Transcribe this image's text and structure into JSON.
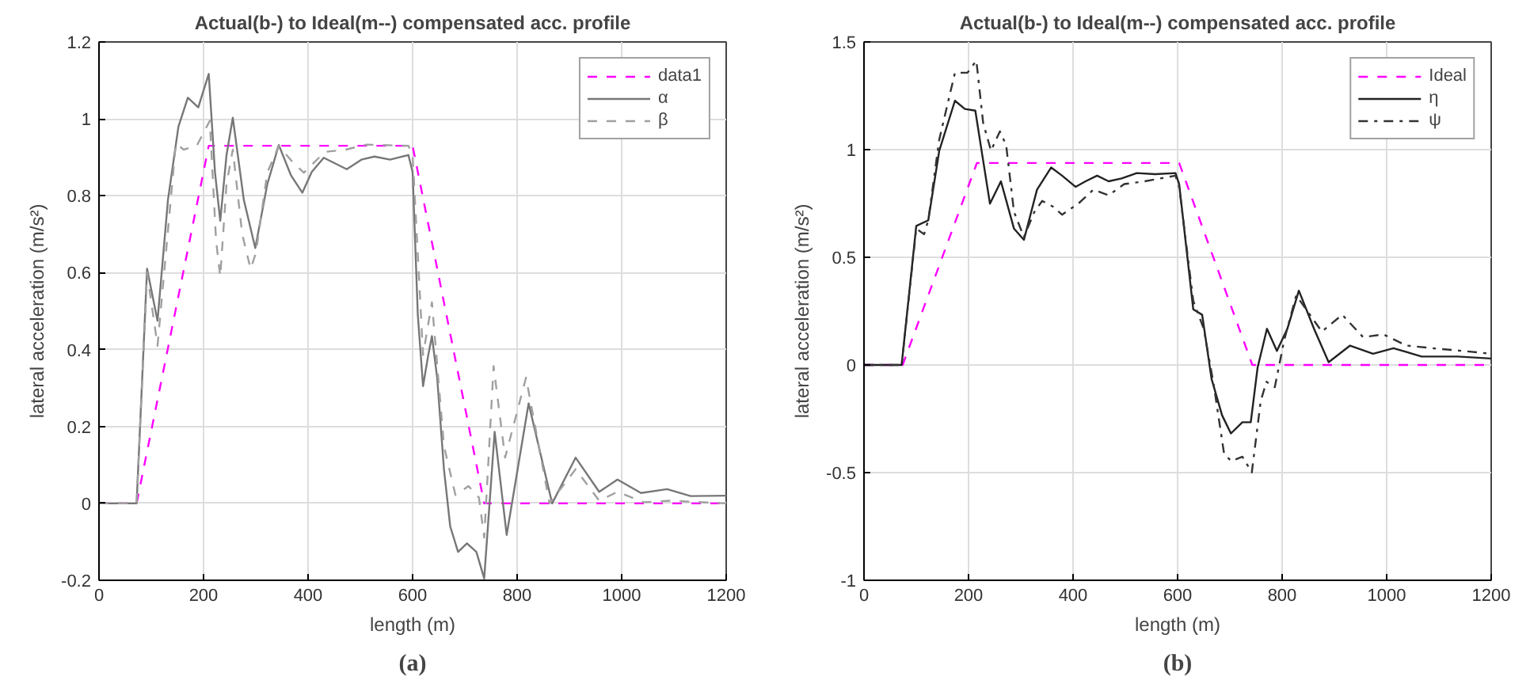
{
  "chart_data": [
    {
      "type": "line",
      "title": "Actual(b-) to Ideal(m--) compensated acc. profile",
      "xlabel": "length (m)",
      "ylabel": "lateral acceleration (m/s²)",
      "annotations": [
        "(a)"
      ],
      "xlim": [
        0,
        1200
      ],
      "xticks": [
        0,
        200,
        400,
        600,
        800,
        1000,
        1200
      ],
      "ylim": [
        -0.2,
        1.2
      ],
      "yticks": [
        -0.2,
        0,
        0.2,
        0.4,
        0.6,
        0.8,
        1,
        1.2
      ],
      "grid": true,
      "legend": "top right",
      "series": [
        {
          "name": "data1",
          "color": "#ff00ff",
          "line_style": "dashed",
          "x": [
            0,
            72,
            210,
            600,
            737,
            1200
          ],
          "values": [
            0,
            0,
            0.93,
            0.93,
            0,
            0
          ]
        },
        {
          "name": "α",
          "color": "#777777",
          "line_style": "solid",
          "x": [
            0,
            72,
            92,
            112,
            132,
            152,
            170,
            190,
            210,
            222,
            232,
            244,
            256,
            277,
            299,
            322,
            344,
            367,
            389,
            407,
            430,
            452,
            474,
            502,
            527,
            557,
            592,
            600,
            610,
            620,
            630,
            637,
            647,
            660,
            672,
            687,
            704,
            722,
            737,
            757,
            780,
            822,
            867,
            912,
            957,
            992,
            1037,
            1087,
            1132,
            1200
          ],
          "values": [
            0,
            0,
            0.61,
            0.475,
            0.79,
            0.98,
            1.055,
            1.03,
            1.117,
            0.86,
            0.735,
            0.906,
            1.003,
            0.79,
            0.664,
            0.83,
            0.932,
            0.854,
            0.808,
            0.862,
            0.899,
            0.884,
            0.869,
            0.894,
            0.902,
            0.894,
            0.906,
            0.862,
            0.49,
            0.305,
            0.386,
            0.435,
            0.327,
            0.089,
            -0.06,
            -0.126,
            -0.104,
            -0.126,
            -0.195,
            0.186,
            -0.082,
            0.26,
            0,
            0.119,
            0.03,
            0.062,
            0.027,
            0.037,
            0.019,
            0.02
          ]
        },
        {
          "name": "β",
          "color": "#a0a0a0",
          "line_style": "dashed",
          "x": [
            0,
            72,
            92,
            112,
            147,
            162,
            187,
            212,
            224,
            232,
            244,
            256,
            274,
            290,
            300,
            322,
            344,
            372,
            392,
            432,
            472,
            512,
            592,
            600,
            620,
            637,
            660,
            682,
            707,
            727,
            737,
            755,
            777,
            817,
            862,
            912,
            957,
            992,
            1042,
            1092,
            1200
          ],
          "values": [
            0,
            0,
            0.6,
            0.41,
            0.936,
            0.92,
            0.93,
            0.995,
            0.683,
            0.59,
            0.83,
            0.92,
            0.7,
            0.61,
            0.65,
            0.86,
            0.93,
            0.885,
            0.86,
            0.914,
            0.92,
            0.933,
            0.93,
            0.906,
            0.386,
            0.523,
            0.149,
            0.022,
            0.045,
            0.015,
            -0.089,
            0.357,
            0.119,
            0.327,
            0,
            0.089,
            0.007,
            0.03,
            0.003,
            0.007,
            0
          ]
        }
      ]
    },
    {
      "type": "line",
      "title": "Actual(b-) to Ideal(m--) compensated acc. profile",
      "xlabel": "length (m)",
      "ylabel": "lateral acceleration (m/s²)",
      "annotations": [
        "(b)"
      ],
      "xlim": [
        0,
        1200
      ],
      "xticks": [
        0,
        200,
        400,
        600,
        800,
        1000,
        1200
      ],
      "ylim": [
        -1,
        1.5
      ],
      "yticks": [
        -1,
        -0.5,
        0,
        0.5,
        1,
        1.5
      ],
      "grid": true,
      "legend": "top right",
      "series": [
        {
          "name": "Ideal",
          "color": "#ff00ff",
          "line_style": "dashed",
          "x": [
            0,
            74,
            216,
            603,
            743,
            1200
          ],
          "values": [
            0,
            0,
            0.938,
            0.938,
            0,
            0
          ]
        },
        {
          "name": "η",
          "color": "#222222",
          "line_style": "solid",
          "x": [
            0,
            72,
            100,
            123,
            144,
            174,
            193,
            213,
            225,
            241,
            262,
            287,
            306,
            331,
            358,
            379,
            405,
            424,
            446,
            468,
            493,
            522,
            557,
            596,
            603,
            630,
            647,
            665,
            685,
            702,
            724,
            740,
            753,
            771,
            790,
            810,
            832,
            861,
            889,
            930,
            974,
            1013,
            1067,
            1136,
            1200
          ],
          "values": [
            0,
            0,
            0.646,
            0.672,
            0.995,
            1.227,
            1.189,
            1.181,
            0.995,
            0.749,
            0.853,
            0.633,
            0.581,
            0.814,
            0.917,
            0.879,
            0.827,
            0.853,
            0.879,
            0.853,
            0.866,
            0.891,
            0.886,
            0.891,
            0.84,
            0.258,
            0.233,
            -0.065,
            -0.233,
            -0.318,
            -0.266,
            -0.266,
            -0.013,
            0.168,
            0.065,
            0.168,
            0.345,
            0.168,
            0.013,
            0.09,
            0.052,
            0.078,
            0.039,
            0.039,
            0.03
          ]
        },
        {
          "name": "ψ",
          "color": "#333333",
          "line_style": "dashdot",
          "x": [
            0,
            72,
            100,
            115,
            123,
            144,
            174,
            198,
            215,
            228,
            243,
            260,
            272,
            287,
            306,
            326,
            341,
            361,
            379,
            410,
            439,
            468,
            498,
            537,
            596,
            603,
            630,
            650,
            669,
            689,
            703,
            724,
            742,
            759,
            770,
            786,
            804,
            827,
            876,
            915,
            955,
            994,
            1038,
            1087,
            1146,
            1200
          ],
          "values": [
            0,
            0,
            0.633,
            0.607,
            0.672,
            1.047,
            1.357,
            1.357,
            1.413,
            1.124,
            0.995,
            1.085,
            1.021,
            0.711,
            0.594,
            0.711,
            0.762,
            0.736,
            0.698,
            0.749,
            0.814,
            0.788,
            0.84,
            0.853,
            0.879,
            0.827,
            0.297,
            0.168,
            -0.09,
            -0.413,
            -0.447,
            -0.426,
            -0.499,
            -0.168,
            -0.078,
            -0.103,
            0.116,
            0.323,
            0.155,
            0.233,
            0.129,
            0.142,
            0.09,
            0.078,
            0.065,
            0.052
          ]
        }
      ]
    }
  ]
}
